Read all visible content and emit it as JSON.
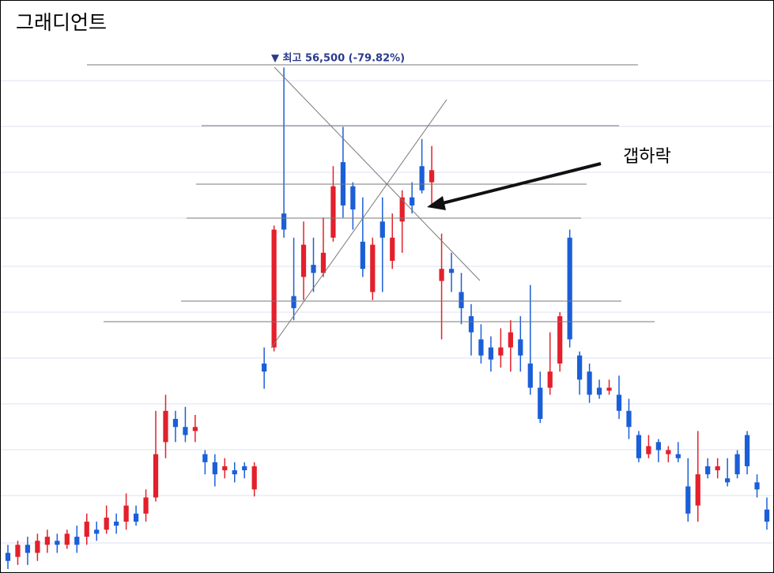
{
  "chart_data": {
    "type": "candlestick",
    "title": "그래디언트",
    "annotations": [
      "▼ 최고 56,500 (-79.82%)",
      "갭하락"
    ],
    "up_color": "#e3202b",
    "down_color": "#1b5fd8",
    "ylim": [
      6300,
      63200
    ],
    "open": [
      8300,
      7900,
      9100,
      8300,
      9100,
      9500,
      9100,
      9900,
      9900,
      10600,
      10600,
      11400,
      11400,
      12200,
      12200,
      13800,
      19300,
      21600,
      20800,
      20400,
      18100,
      17300,
      16500,
      16500,
      16900,
      14600,
      27100,
      28700,
      42000,
      33800,
      35700,
      36900,
      36100,
      39600,
      47100,
      44700,
      39200,
      34200,
      41200,
      37300,
      41200,
      43600,
      46700,
      45100,
      35300,
      36500,
      34200,
      31800,
      29500,
      28700,
      27900,
      28700,
      29500,
      27100,
      24700,
      24700,
      27100,
      39600,
      27900,
      26300,
      24700,
      24400,
      24000,
      22400,
      20000,
      18100,
      19300,
      18100,
      18100,
      14900,
      13000,
      16900,
      16500,
      15700,
      18100,
      20000,
      15300,
      12600
    ],
    "close": [
      7500,
      9100,
      8300,
      9500,
      9900,
      9100,
      10200,
      9100,
      11400,
      10200,
      11800,
      11000,
      13000,
      11400,
      13800,
      18100,
      22400,
      20800,
      20000,
      20800,
      17300,
      16100,
      16900,
      16100,
      16500,
      16900,
      26300,
      40400,
      40400,
      32600,
      38900,
      36100,
      38100,
      44700,
      42800,
      42400,
      36500,
      38900,
      39600,
      39600,
      43600,
      42800,
      44300,
      46300,
      36500,
      36100,
      32600,
      30200,
      27900,
      27500,
      28700,
      30200,
      27900,
      24700,
      21600,
      26300,
      31800,
      29500,
      25500,
      24000,
      24000,
      24700,
      22400,
      20800,
      17700,
      18900,
      18500,
      18500,
      17700,
      12200,
      16100,
      16100,
      16900,
      15300,
      16100,
      16900,
      14600,
      11400
    ],
    "high": [
      9100,
      9500,
      9900,
      10200,
      10600,
      10200,
      10600,
      11000,
      12200,
      11400,
      13000,
      12200,
      14200,
      13000,
      14600,
      22400,
      24000,
      22400,
      22800,
      22000,
      18500,
      18100,
      17700,
      17300,
      17300,
      17300,
      28700,
      40800,
      56500,
      39600,
      41200,
      39600,
      41600,
      46700,
      50600,
      45100,
      43600,
      39600,
      43600,
      42000,
      44300,
      45100,
      49400,
      48700,
      40000,
      38100,
      36100,
      33000,
      31000,
      29800,
      30600,
      31400,
      31800,
      34900,
      26300,
      30200,
      32200,
      40400,
      28300,
      27100,
      25500,
      25500,
      25900,
      23600,
      20400,
      20000,
      19600,
      18900,
      19300,
      17700,
      20400,
      17700,
      17700,
      17700,
      18500,
      20400,
      16100,
      13800
    ],
    "low": [
      6700,
      7100,
      7100,
      7500,
      8300,
      8300,
      8700,
      8300,
      9100,
      9500,
      10200,
      10200,
      10600,
      11000,
      11400,
      13400,
      17700,
      19300,
      19300,
      19300,
      16100,
      14900,
      15700,
      15300,
      15700,
      13900,
      24600,
      28300,
      39600,
      31400,
      33400,
      34200,
      35700,
      39200,
      41600,
      40400,
      35700,
      33400,
      34200,
      36500,
      38100,
      42000,
      44000,
      42800,
      29500,
      34200,
      31000,
      27900,
      27100,
      26300,
      26700,
      26300,
      26300,
      24000,
      21200,
      24000,
      26300,
      28700,
      24000,
      23200,
      23600,
      24000,
      21600,
      19600,
      17300,
      17700,
      17300,
      17300,
      17300,
      11400,
      11400,
      15700,
      15700,
      14900,
      15700,
      16100,
      13800,
      10600
    ]
  }
}
